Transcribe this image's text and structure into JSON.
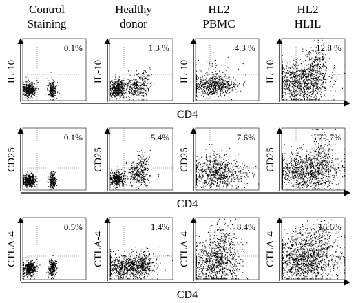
{
  "chart_data": {
    "type": "scatter",
    "columns": [
      {
        "line1": "Control",
        "line2": "Staining"
      },
      {
        "line1": "Healthy",
        "line2": "donor"
      },
      {
        "line1": "HL2",
        "line2": "PBMC"
      },
      {
        "line1": "HL2",
        "line2": "HLIL"
      }
    ],
    "xlabel": "CD4",
    "rows": [
      {
        "ylabel": "IL-10",
        "percentages": [
          "0.1%",
          "1.3 %",
          "4.3 %",
          "12.8 %"
        ]
      },
      {
        "ylabel": "CD25",
        "percentages": [
          "0.1%",
          "5.4%",
          "7.6%",
          "22.7%"
        ]
      },
      {
        "ylabel": "CTLA-4",
        "percentages": [
          "0.5%",
          "1.4%",
          "8.4%",
          "16.6%"
        ]
      }
    ],
    "quadrant_gates": "dotted cross in each plot; percentage shown is upper-right quadrant",
    "grid": false
  }
}
